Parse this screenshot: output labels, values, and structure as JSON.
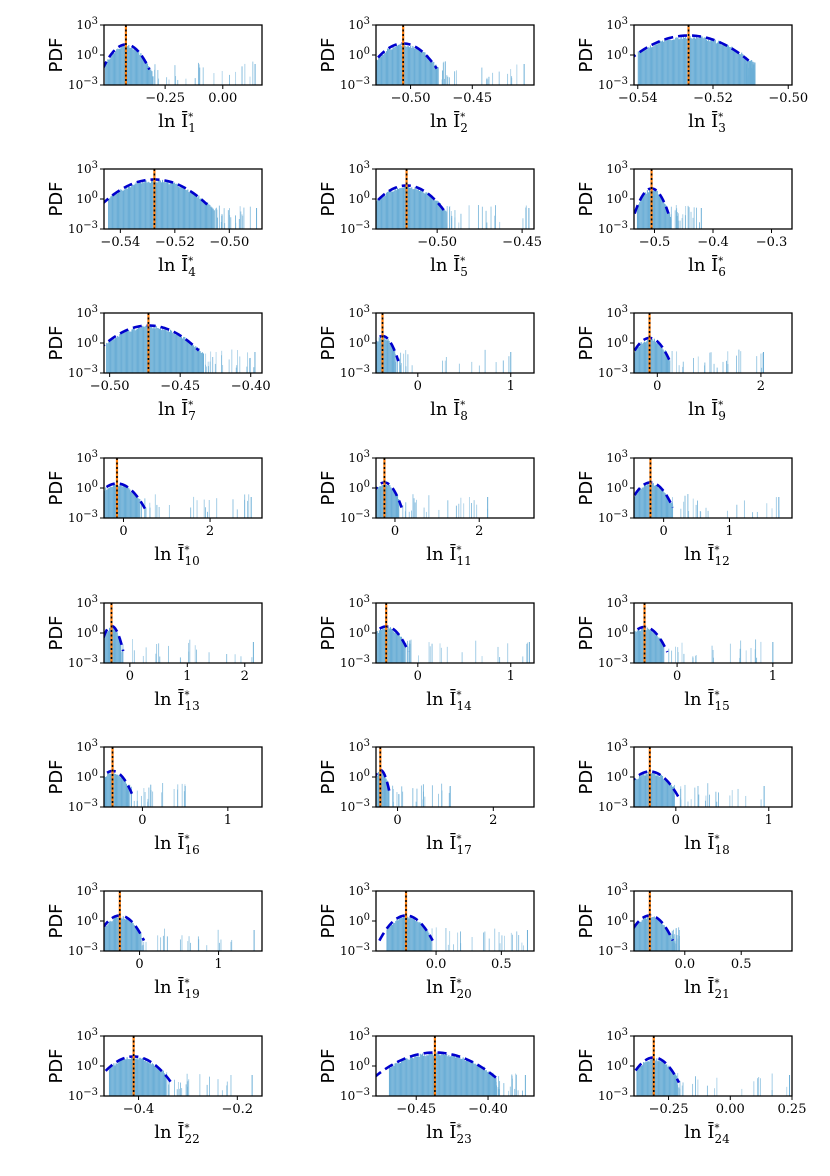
{
  "figure": {
    "rows": 8,
    "cols": 3,
    "colors": {
      "hist": "#6baed6",
      "fit": "#0000cc",
      "mean": "#ff7f0e",
      "median": "#000000"
    }
  },
  "chart_data": [
    {
      "type": "histogram",
      "ylabel": "PDF",
      "xlabel": "ln Ī",
      "subscript": "1",
      "yscale": "log",
      "ylim_exp": [
        -3,
        3
      ],
      "ytick_exps": [
        -3,
        0,
        3
      ],
      "xlim": [
        -0.515,
        0.17
      ],
      "xticks": [
        -0.25,
        0.0
      ],
      "xtick_labels": [
        "−0.25",
        "0.00"
      ],
      "peak": -0.42,
      "sigma": 0.03,
      "peak_exp": 0.9,
      "body_half": 0.09,
      "tail_end": 0.14,
      "mean": -0.42
    },
    {
      "type": "histogram",
      "ylabel": "PDF",
      "xlabel": "ln Ī",
      "subscript": "2",
      "yscale": "log",
      "ylim_exp": [
        -3,
        3
      ],
      "ytick_exps": [
        -3,
        0,
        3
      ],
      "xlim": [
        -0.528,
        -0.4
      ],
      "xticks": [
        -0.5,
        -0.45
      ],
      "xtick_labels": [
        "−0.50",
        "−0.45"
      ],
      "peak": -0.506,
      "sigma": 0.008,
      "peak_exp": 1.0,
      "body_half": 0.022,
      "tail_end": -0.408,
      "mean": -0.506
    },
    {
      "type": "histogram",
      "ylabel": "PDF",
      "xlabel": "ln Ī",
      "subscript": "3",
      "yscale": "log",
      "ylim_exp": [
        -3,
        3
      ],
      "ytick_exps": [
        -3,
        0,
        3
      ],
      "xlim": [
        -0.541,
        -0.499
      ],
      "xticks": [
        -0.54,
        -0.52,
        -0.5
      ],
      "xtick_labels": [
        "−0.54",
        "−0.52",
        "−0.50"
      ],
      "peak": -0.5265,
      "sigma": 0.0047,
      "peak_exp": 1.8,
      "body_half": 0.0135,
      "tail_end": -0.511,
      "mean": -0.5265
    },
    {
      "type": "histogram",
      "ylabel": "PDF",
      "xlabel": "ln Ī",
      "subscript": "4",
      "yscale": "log",
      "ylim_exp": [
        -3,
        3
      ],
      "ytick_exps": [
        -3,
        0,
        3
      ],
      "xlim": [
        -0.546,
        -0.488
      ],
      "xticks": [
        -0.54,
        -0.52,
        -0.5
      ],
      "xtick_labels": [
        "−0.54",
        "−0.52",
        "−0.50"
      ],
      "peak": -0.5275,
      "sigma": 0.0057,
      "peak_exp": 1.8,
      "body_half": 0.017,
      "tail_end": -0.49,
      "mean": -0.5275
    },
    {
      "type": "histogram",
      "ylabel": "PDF",
      "xlabel": "ln Ī",
      "subscript": "5",
      "yscale": "log",
      "ylim_exp": [
        -3,
        3
      ],
      "ytick_exps": [
        -3,
        0,
        3
      ],
      "xlim": [
        -0.536,
        -0.443
      ],
      "xticks": [
        -0.5,
        -0.45
      ],
      "xtick_labels": [
        "−0.50",
        "−0.45"
      ],
      "peak": -0.518,
      "sigma": 0.0065,
      "peak_exp": 1.2,
      "body_half": 0.018,
      "tail_end": -0.446,
      "mean": -0.518
    },
    {
      "type": "histogram",
      "ylabel": "PDF",
      "xlabel": "ln Ī",
      "subscript": "6",
      "yscale": "log",
      "ylim_exp": [
        -3,
        3
      ],
      "ytick_exps": [
        -3,
        0,
        3
      ],
      "xlim": [
        -0.535,
        -0.265
      ],
      "xticks": [
        -0.5,
        -0.4,
        -0.3
      ],
      "xtick_labels": [
        "−0.5",
        "−0.4",
        "−0.3"
      ],
      "peak": -0.505,
      "sigma": 0.0085,
      "peak_exp": 0.9,
      "body_half": 0.025,
      "tail_end": -0.42,
      "mean": -0.505
    },
    {
      "type": "histogram",
      "ylabel": "PDF",
      "xlabel": "ln Ī",
      "subscript": "7",
      "yscale": "log",
      "ylim_exp": [
        -3,
        3
      ],
      "ytick_exps": [
        -3,
        0,
        3
      ],
      "xlim": [
        -0.504,
        -0.392
      ],
      "xticks": [
        -0.5,
        -0.45,
        -0.4
      ],
      "xtick_labels": [
        "−0.50",
        "−0.45",
        "−0.40"
      ],
      "peak": -0.4725,
      "sigma": 0.0105,
      "peak_exp": 1.6,
      "body_half": 0.03,
      "tail_end": -0.397,
      "mean": -0.4725
    },
    {
      "type": "histogram",
      "ylabel": "PDF",
      "xlabel": "ln Ī",
      "subscript": "8",
      "yscale": "log",
      "ylim_exp": [
        -3,
        3
      ],
      "ytick_exps": [
        -3,
        0,
        3
      ],
      "xlim": [
        -0.45,
        1.25
      ],
      "xticks": [
        0,
        1
      ],
      "xtick_labels": [
        "0",
        "1"
      ],
      "peak": -0.38,
      "sigma": 0.05,
      "peak_exp": 0.55,
      "body_half": 0.1,
      "tail_end": 1.0,
      "mean": -0.38
    },
    {
      "type": "histogram",
      "ylabel": "PDF",
      "xlabel": "ln Ī",
      "subscript": "9",
      "yscale": "log",
      "ylim_exp": [
        -3,
        3
      ],
      "ytick_exps": [
        -3,
        0,
        3
      ],
      "xlim": [
        -0.45,
        2.6
      ],
      "xticks": [
        0,
        2
      ],
      "xtick_labels": [
        "0",
        "2"
      ],
      "peak": -0.15,
      "sigma": 0.12,
      "peak_exp": 0.35,
      "body_half": 0.3,
      "tail_end": 2.05,
      "mean": -0.15
    },
    {
      "type": "histogram",
      "ylabel": "PDF",
      "xlabel": "ln Ī",
      "subscript": "10",
      "yscale": "log",
      "ylim_exp": [
        -3,
        3
      ],
      "ytick_exps": [
        -3,
        0,
        3
      ],
      "xlim": [
        -0.45,
        3.2
      ],
      "xticks": [
        0,
        2
      ],
      "xtick_labels": [
        "0",
        "2"
      ],
      "peak": -0.15,
      "sigma": 0.19,
      "peak_exp": 0.3,
      "body_half": 0.4,
      "tail_end": 2.95,
      "mean": -0.15
    },
    {
      "type": "histogram",
      "ylabel": "PDF",
      "xlabel": "ln Ī",
      "subscript": "11",
      "yscale": "log",
      "ylim_exp": [
        -3,
        3
      ],
      "ytick_exps": [
        -3,
        0,
        3
      ],
      "xlim": [
        -0.45,
        3.3
      ],
      "xticks": [
        0,
        2
      ],
      "xtick_labels": [
        "0",
        "2"
      ],
      "peak": -0.25,
      "sigma": 0.12,
      "peak_exp": 0.4,
      "body_half": 0.25,
      "tail_end": 2.2,
      "mean": -0.25
    },
    {
      "type": "histogram",
      "ylabel": "PDF",
      "xlabel": "ln Ī",
      "subscript": "12",
      "yscale": "log",
      "ylim_exp": [
        -3,
        3
      ],
      "ytick_exps": [
        -3,
        0,
        3
      ],
      "xlim": [
        -0.45,
        1.95
      ],
      "xticks": [
        0,
        1
      ],
      "xtick_labels": [
        "0",
        "1"
      ],
      "peak": -0.2,
      "sigma": 0.1,
      "peak_exp": 0.4,
      "body_half": 0.25,
      "tail_end": 1.75,
      "mean": -0.2
    },
    {
      "type": "histogram",
      "ylabel": "PDF",
      "xlabel": "ln Ī",
      "subscript": "13",
      "yscale": "log",
      "ylim_exp": [
        -3,
        3
      ],
      "ytick_exps": [
        -3,
        0,
        3
      ],
      "xlim": [
        -0.45,
        2.3
      ],
      "xticks": [
        0,
        1,
        2
      ],
      "xtick_labels": [
        "0",
        "1",
        "2"
      ],
      "peak": -0.32,
      "sigma": 0.06,
      "peak_exp": 0.55,
      "body_half": 0.12,
      "tail_end": 2.15,
      "mean": -0.32
    },
    {
      "type": "histogram",
      "ylabel": "PDF",
      "xlabel": "ln Ī",
      "subscript": "14",
      "yscale": "log",
      "ylim_exp": [
        -3,
        3
      ],
      "ytick_exps": [
        -3,
        0,
        3
      ],
      "xlim": [
        -0.45,
        1.25
      ],
      "xticks": [
        0,
        1
      ],
      "xtick_labels": [
        "0",
        "1"
      ],
      "peak": -0.34,
      "sigma": 0.07,
      "peak_exp": 0.5,
      "body_half": 0.15,
      "tail_end": 1.2,
      "mean": -0.34
    },
    {
      "type": "histogram",
      "ylabel": "PDF",
      "xlabel": "ln Ī",
      "subscript": "15",
      "yscale": "log",
      "ylim_exp": [
        -3,
        3
      ],
      "ytick_exps": [
        -3,
        0,
        3
      ],
      "xlim": [
        -0.45,
        1.2
      ],
      "xticks": [
        0,
        1
      ],
      "xtick_labels": [
        "0",
        "1"
      ],
      "peak": -0.34,
      "sigma": 0.07,
      "peak_exp": 0.45,
      "body_half": 0.15,
      "tail_end": 1.0,
      "mean": -0.34
    },
    {
      "type": "histogram",
      "ylabel": "PDF",
      "xlabel": "ln Ī",
      "subscript": "16",
      "yscale": "log",
      "ylim_exp": [
        -3,
        3
      ],
      "ytick_exps": [
        -3,
        0,
        3
      ],
      "xlim": [
        -0.45,
        1.4
      ],
      "xticks": [
        0,
        1
      ],
      "xtick_labels": [
        "0",
        "1"
      ],
      "peak": -0.35,
      "sigma": 0.07,
      "peak_exp": 0.45,
      "body_half": 0.14,
      "tail_end": 0.5,
      "mean": -0.35
    },
    {
      "type": "histogram",
      "ylabel": "PDF",
      "xlabel": "ln Ī",
      "subscript": "17",
      "yscale": "log",
      "ylim_exp": [
        -3,
        3
      ],
      "ytick_exps": [
        -3,
        0,
        3
      ],
      "xlim": [
        -0.45,
        2.85
      ],
      "xticks": [
        0,
        2
      ],
      "xtick_labels": [
        "0",
        "2"
      ],
      "peak": -0.36,
      "sigma": 0.06,
      "peak_exp": 0.55,
      "body_half": 0.12,
      "tail_end": 1.1,
      "mean": -0.36
    },
    {
      "type": "histogram",
      "ylabel": "PDF",
      "xlabel": "ln Ī",
      "subscript": "18",
      "yscale": "log",
      "ylim_exp": [
        -3,
        3
      ],
      "ytick_exps": [
        -3,
        0,
        3
      ],
      "xlim": [
        -0.45,
        1.25
      ],
      "xticks": [
        0,
        1
      ],
      "xtick_labels": [
        "0",
        "1"
      ],
      "peak": -0.28,
      "sigma": 0.09,
      "peak_exp": 0.4,
      "body_half": 0.2,
      "tail_end": 0.95,
      "mean": -0.28
    },
    {
      "type": "histogram",
      "ylabel": "PDF",
      "xlabel": "ln Ī",
      "subscript": "19",
      "yscale": "log",
      "ylim_exp": [
        -3,
        3
      ],
      "ytick_exps": [
        -3,
        0,
        3
      ],
      "xlim": [
        -0.45,
        1.55
      ],
      "xticks": [
        0,
        1
      ],
      "xtick_labels": [
        "0",
        "1"
      ],
      "peak": -0.25,
      "sigma": 0.09,
      "peak_exp": 0.4,
      "body_half": 0.2,
      "tail_end": 1.45,
      "mean": -0.25
    },
    {
      "type": "histogram",
      "ylabel": "PDF",
      "xlabel": "ln Ī",
      "subscript": "20",
      "yscale": "log",
      "ylim_exp": [
        -3,
        3
      ],
      "ytick_exps": [
        -3,
        0,
        3
      ],
      "xlim": [
        -0.46,
        0.75
      ],
      "xticks": [
        0.0,
        0.5
      ],
      "xtick_labels": [
        "0.0",
        "0.5"
      ],
      "peak": -0.23,
      "sigma": 0.06,
      "peak_exp": 0.4,
      "body_half": 0.15,
      "tail_end": 0.7,
      "mean": -0.23
    },
    {
      "type": "histogram",
      "ylabel": "PDF",
      "xlabel": "ln Ī",
      "subscript": "21",
      "yscale": "log",
      "ylim_exp": [
        -3,
        3
      ],
      "ytick_exps": [
        -3,
        0,
        3
      ],
      "xlim": [
        -0.45,
        0.95
      ],
      "xticks": [
        0.0,
        0.5
      ],
      "xtick_labels": [
        "0.0",
        "0.5"
      ],
      "peak": -0.31,
      "sigma": 0.06,
      "peak_exp": 0.4,
      "body_half": 0.15,
      "tail_end": -0.05,
      "mean": -0.31
    },
    {
      "type": "histogram",
      "ylabel": "PDF",
      "xlabel": "ln Ī",
      "subscript": "22",
      "yscale": "log",
      "ylim_exp": [
        -3,
        3
      ],
      "ytick_exps": [
        -3,
        0,
        3
      ],
      "xlim": [
        -0.47,
        -0.15
      ],
      "xticks": [
        -0.4,
        -0.2
      ],
      "xtick_labels": [
        "−0.4",
        "−0.2"
      ],
      "peak": -0.41,
      "sigma": 0.022,
      "peak_exp": 0.8,
      "body_half": 0.05,
      "tail_end": -0.17,
      "mean": -0.41
    },
    {
      "type": "histogram",
      "ylabel": "PDF",
      "xlabel": "ln Ī",
      "subscript": "23",
      "yscale": "log",
      "ylim_exp": [
        -3,
        3
      ],
      "ytick_exps": [
        -3,
        0,
        3
      ],
      "xlim": [
        -0.478,
        -0.368
      ],
      "xticks": [
        -0.45,
        -0.4
      ],
      "xtick_labels": [
        "−0.45",
        "−0.40"
      ],
      "peak": -0.437,
      "sigma": 0.0125,
      "peak_exp": 1.2,
      "body_half": 0.032,
      "tail_end": -0.374,
      "mean": -0.437
    },
    {
      "type": "histogram",
      "ylabel": "PDF",
      "xlabel": "ln Ī",
      "subscript": "24",
      "yscale": "log",
      "ylim_exp": [
        -3,
        3
      ],
      "ytick_exps": [
        -3,
        0,
        3
      ],
      "xlim": [
        -0.39,
        0.25
      ],
      "xticks": [
        -0.25,
        0.0,
        0.25
      ],
      "xtick_labels": [
        "−0.25",
        "0.00",
        "0.25"
      ],
      "peak": -0.31,
      "sigma": 0.03,
      "peak_exp": 0.7,
      "body_half": 0.07,
      "tail_end": 0.24,
      "mean": -0.31
    }
  ]
}
